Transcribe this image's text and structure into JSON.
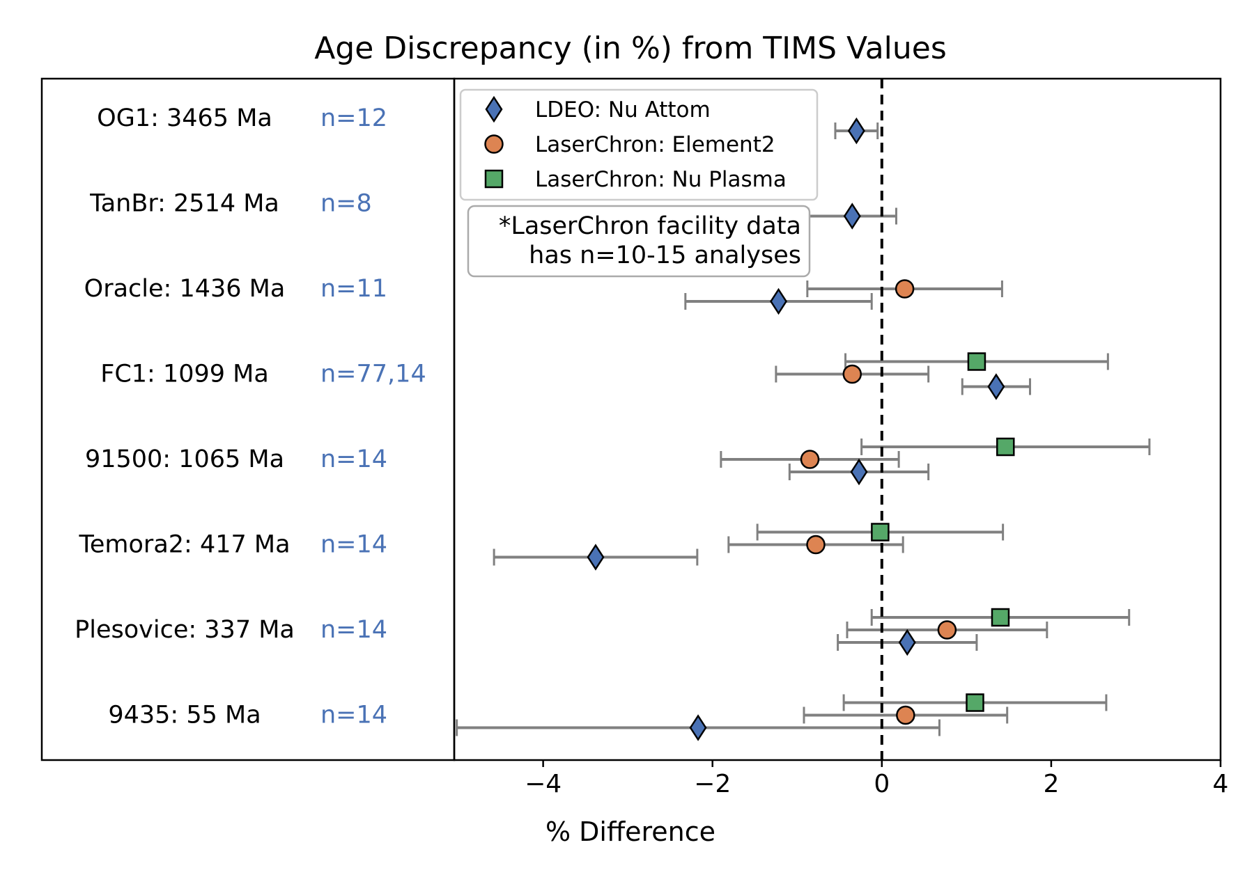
{
  "chart_data": {
    "type": "scatter",
    "title": "Age Discrepancy (in %) from TIMS Values",
    "xlabel": "% Difference",
    "ylabel": "",
    "xlim": [
      -5.05,
      4
    ],
    "x_ticks": [
      -4,
      -2,
      0,
      2,
      4
    ],
    "x_tick_labels": [
      "−4",
      "−2",
      "0",
      "2",
      "4"
    ],
    "grid": false,
    "legend_position": "top-left",
    "reference_line": {
      "x": 0,
      "style": "dashed"
    },
    "samples": [
      {
        "label": "OG1: 3465 Ma",
        "n": "n=12"
      },
      {
        "label": "TanBr: 2514 Ma",
        "n": "n=8"
      },
      {
        "label": "Oracle: 1436 Ma",
        "n": "n=11"
      },
      {
        "label": "FC1: 1099 Ma",
        "n": "n=77,14"
      },
      {
        "label": "91500: 1065 Ma",
        "n": "n=14"
      },
      {
        "label": "Temora2: 417 Ma",
        "n": "n=14"
      },
      {
        "label": "Plesovice: 337 Ma",
        "n": "n=14"
      },
      {
        "label": "9435: 55 Ma",
        "n": "n=14"
      }
    ],
    "series": [
      {
        "name": "LDEO: Nu Attom",
        "marker": "diamond",
        "color": "#4a72b5",
        "offset": 1,
        "points": [
          {
            "sample": 0,
            "x": -0.3,
            "err": 0.25
          },
          {
            "sample": 1,
            "x": -0.35,
            "err": 0.52
          },
          {
            "sample": 2,
            "x": -1.22,
            "err": 1.1
          },
          {
            "sample": 3,
            "x": 1.35,
            "err": 0.4
          },
          {
            "sample": 4,
            "x": -0.27,
            "err": 0.82
          },
          {
            "sample": 5,
            "x": -3.38,
            "err": 1.2
          },
          {
            "sample": 6,
            "x": 0.3,
            "err": 0.82
          },
          {
            "sample": 7,
            "x": -2.17,
            "err": 2.85
          }
        ]
      },
      {
        "name": "LaserChron: Element2",
        "marker": "circle",
        "color": "#dd8452",
        "offset": 0,
        "points": [
          {
            "sample": 2,
            "x": 0.27,
            "err": 1.15
          },
          {
            "sample": 3,
            "x": -0.35,
            "err": 0.9
          },
          {
            "sample": 4,
            "x": -0.85,
            "err": 1.05
          },
          {
            "sample": 5,
            "x": -0.78,
            "err": 1.03
          },
          {
            "sample": 6,
            "x": 0.77,
            "err": 1.18
          },
          {
            "sample": 7,
            "x": 0.28,
            "err": 1.2
          }
        ]
      },
      {
        "name": "LaserChron: Nu Plasma",
        "marker": "square",
        "color": "#55a868",
        "offset": -1,
        "points": [
          {
            "sample": 3,
            "x": 1.12,
            "err": 1.55
          },
          {
            "sample": 4,
            "x": 1.46,
            "err": 1.7
          },
          {
            "sample": 5,
            "x": -0.02,
            "err": 1.45
          },
          {
            "sample": 6,
            "x": 1.4,
            "err": 1.52
          },
          {
            "sample": 7,
            "x": 1.1,
            "err": 1.55
          }
        ]
      }
    ],
    "note": [
      "*LaserChron facility data",
      "has n=10-15 analyses"
    ]
  }
}
